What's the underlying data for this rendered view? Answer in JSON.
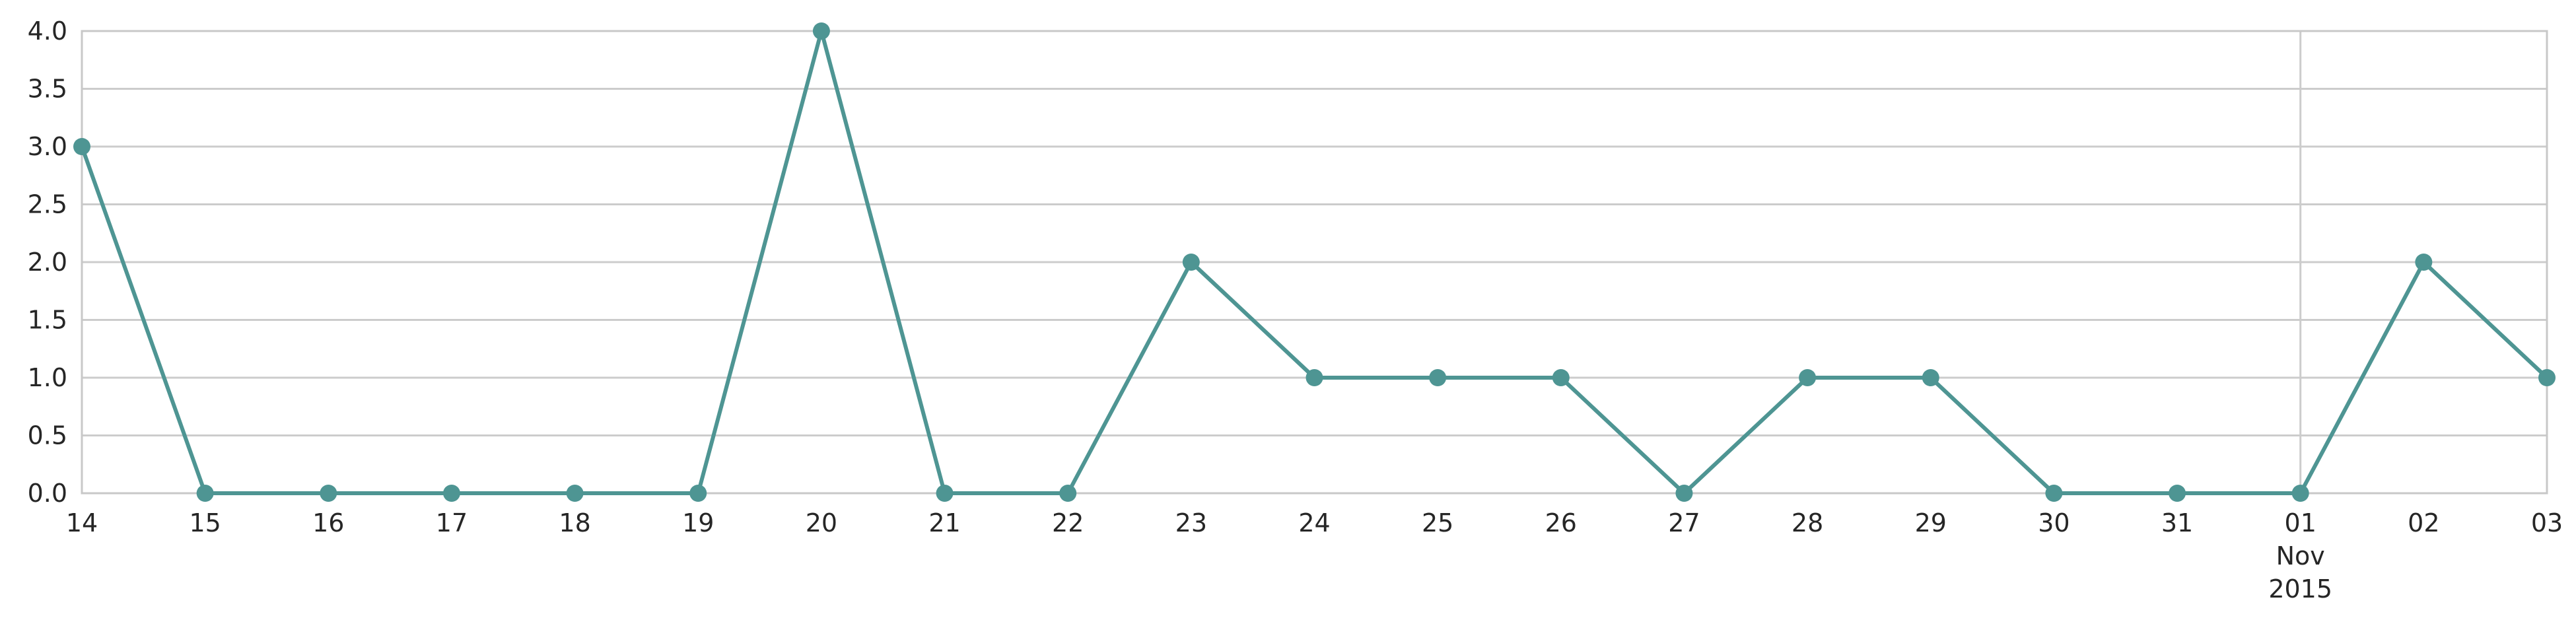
{
  "chart_data": {
    "type": "line",
    "title": "",
    "xlabel": "",
    "ylabel": "",
    "x": [
      "2015-10-14",
      "2015-10-15",
      "2015-10-16",
      "2015-10-17",
      "2015-10-18",
      "2015-10-19",
      "2015-10-20",
      "2015-10-21",
      "2015-10-22",
      "2015-10-23",
      "2015-10-24",
      "2015-10-25",
      "2015-10-26",
      "2015-10-27",
      "2015-10-28",
      "2015-10-29",
      "2015-10-30",
      "2015-10-31",
      "2015-11-01",
      "2015-11-02",
      "2015-11-03"
    ],
    "series": [
      {
        "values": [
          3,
          0,
          0,
          0,
          0,
          0,
          4,
          0,
          0,
          2,
          1,
          1,
          1,
          0,
          1,
          1,
          0,
          0,
          0,
          2,
          1
        ]
      }
    ],
    "x_tick_labels": [
      "14",
      "15",
      "16",
      "17",
      "18",
      "19",
      "20",
      "21",
      "22",
      "23",
      "24",
      "25",
      "26",
      "27",
      "28",
      "29",
      "30",
      "31",
      "01",
      "02",
      "03"
    ],
    "x_month_label": {
      "at": "2015-11-01",
      "month": "Nov",
      "year": "2015"
    },
    "ylim": [
      0,
      4.0
    ],
    "y_ticks": [
      "0.0",
      "0.5",
      "1.0",
      "1.5",
      "2.0",
      "2.5",
      "3.0",
      "3.5",
      "4.0"
    ],
    "grid": true,
    "line_color": "#4e9593"
  }
}
